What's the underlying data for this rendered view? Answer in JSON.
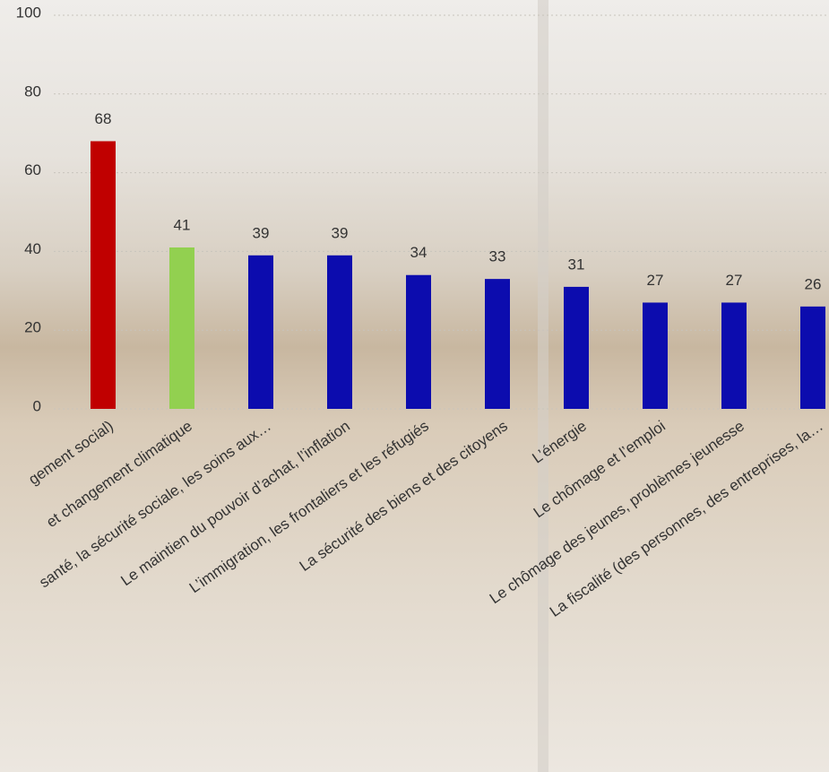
{
  "chart_data": {
    "type": "bar",
    "categories": [
      "gement  social)",
      "et  changement climatique",
      "santé, la sécurité sociale, les soins aux…",
      "Le maintien du  pouvoir d’achat, l’inflation",
      "L’immigration,  les frontaliers et les réfugiés",
      "La sécurité des biens et des citoyens",
      "L’énergie",
      "Le chômage  et l’emploi",
      "Le chômage des jeunes, problèmes jeunesse",
      "La fiscalité (des personnes, des entreprises, la…"
    ],
    "values": [
      68,
      41,
      39,
      39,
      34,
      33,
      31,
      27,
      27,
      26
    ],
    "colors": [
      "#c00000",
      "#92d050",
      "#0c0cae",
      "#0c0cae",
      "#0c0cae",
      "#0c0cae",
      "#0c0cae",
      "#0c0cae",
      "#0c0cae",
      "#0c0cae"
    ],
    "ylim": [
      0,
      100
    ],
    "yticks": [
      0,
      20,
      40,
      60,
      80,
      100
    ],
    "grid": true
  }
}
